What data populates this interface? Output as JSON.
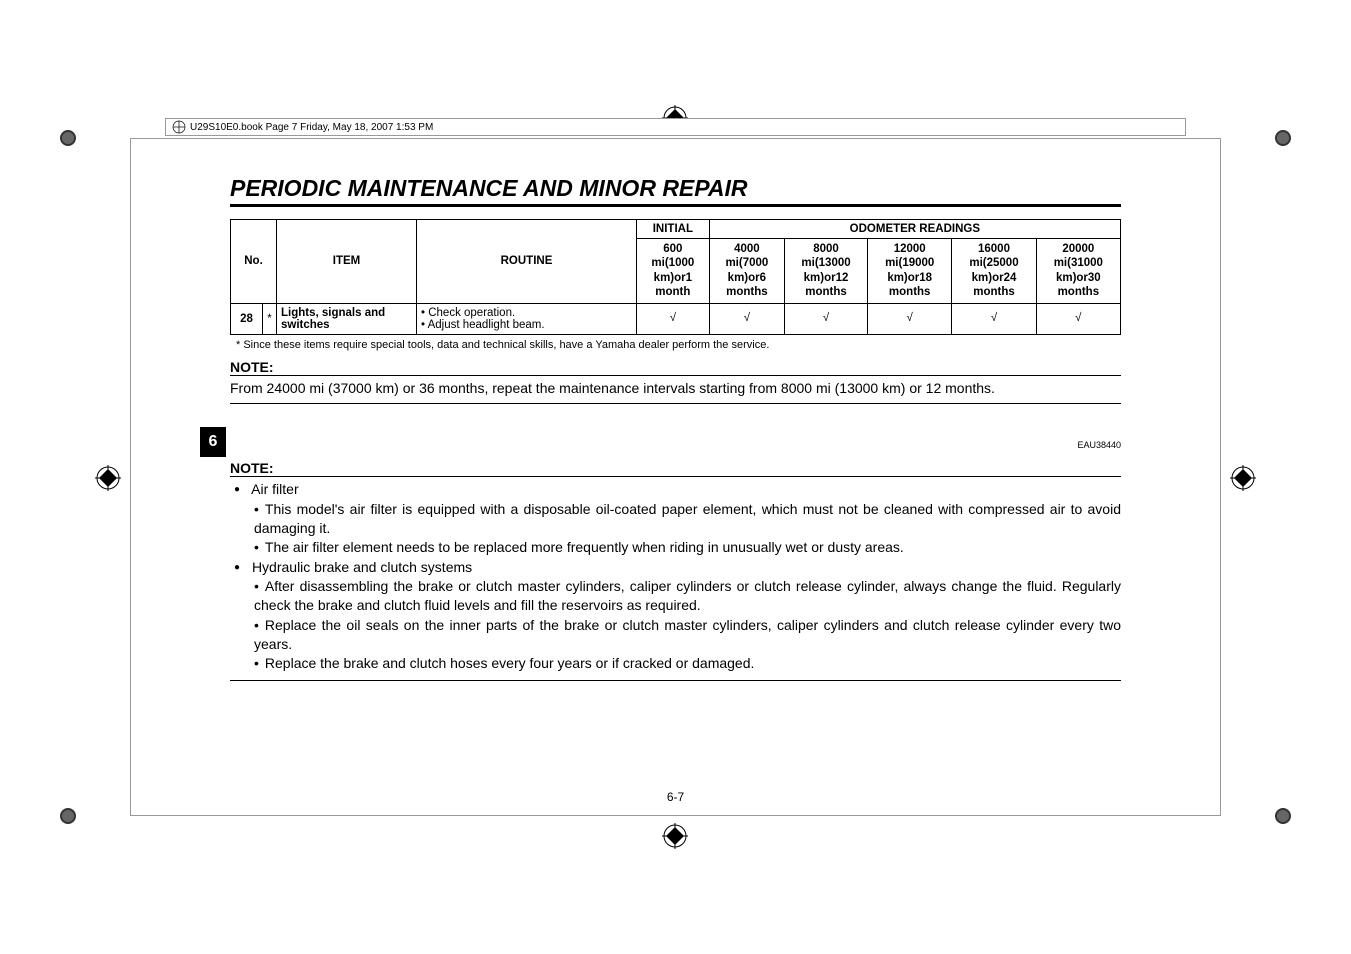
{
  "header_strip": "U29S10E0.book  Page 7  Friday, May 18, 2007  1:53 PM",
  "section_title": "PERIODIC MAINTENANCE AND MINOR REPAIR",
  "table": {
    "head": {
      "no": "No.",
      "item": "ITEM",
      "routine": "ROUTINE",
      "initial": "INITIAL",
      "odometer": "ODOMETER READINGS",
      "intervals": [
        "600 mi\n(1000 km)\nor\n1 month",
        "4000 mi\n(7000 km)\nor\n6 months",
        "8000 mi\n(13000 km)\nor\n12 months",
        "12000 mi\n(19000 km)\nor\n18 months",
        "16000 mi\n(25000 km)\nor\n24 months",
        "20000 mi\n(31000 km)\nor\n30 months"
      ]
    },
    "row": {
      "no": "28",
      "star": "*",
      "item": "Lights, signals and switches",
      "routine": "• Check operation.\n• Adjust headlight beam.",
      "checks": [
        "√",
        "√",
        "√",
        "√",
        "√",
        "√"
      ]
    }
  },
  "footnote": "* Since these items require special tools, data and technical skills, have a Yamaha dealer perform the service.",
  "note1_label": "NOTE:",
  "note1_text": "From 24000 mi (37000 km) or 36 months, repeat the maintenance intervals starting from 8000 mi (13000 km) or 12 months.",
  "eau": "EAU38440",
  "side_tab": "6",
  "note2_label": "NOTE:",
  "bullets": [
    {
      "text": "Air filter",
      "sub": [
        "This model's air filter is equipped with a disposable oil-coated paper element, which must not be cleaned with compressed air to avoid damaging it.",
        "The air filter element needs to be replaced more frequently when riding in unusually wet or dusty areas."
      ]
    },
    {
      "text": "Hydraulic brake and clutch systems",
      "sub": [
        "After disassembling the brake or clutch master cylinders, caliper cylinders or clutch release cylinder, always change the fluid. Regularly check the brake and clutch fluid levels and fill the reservoirs as required.",
        "Replace the oil seals on the inner parts of the brake or clutch master cylinders, caliper cylinders and clutch release cylinder every two years.",
        "Replace the brake and clutch hoses every four years or if cracked or damaged."
      ]
    }
  ],
  "page_num": "6-7"
}
